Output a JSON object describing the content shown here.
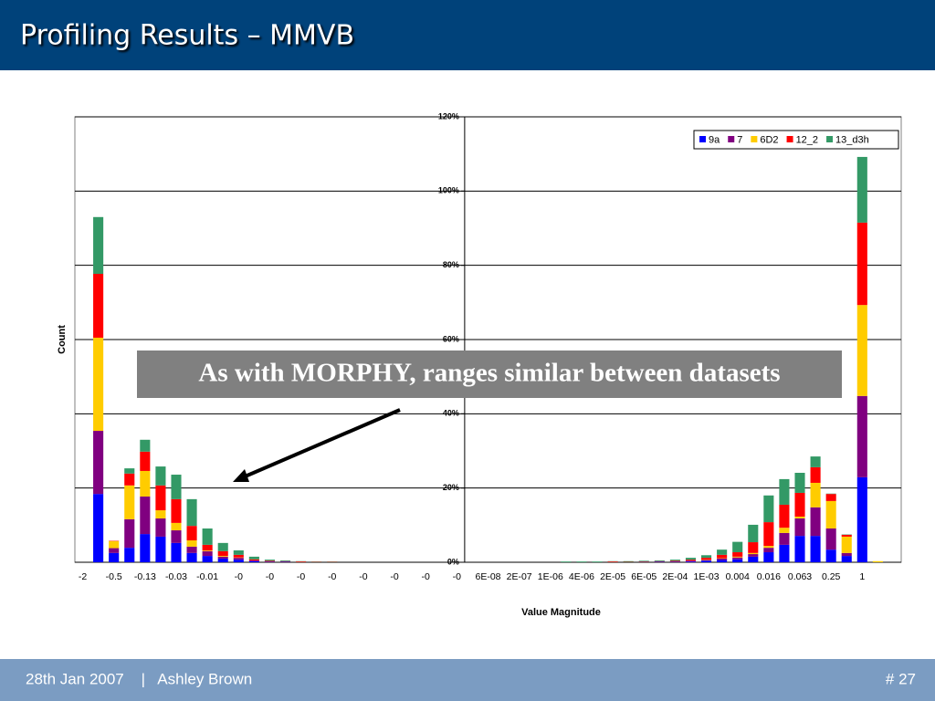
{
  "header": {
    "title": "Profiling Results – MMVB"
  },
  "chart_data": {
    "type": "stacked_bar",
    "y_label": "Count",
    "x_label": "Value Magnitude",
    "annotation": "As with MORPHY, ranges similar between datasets",
    "legend": "top-right",
    "grid": true,
    "ylim": [
      0,
      120
    ],
    "yticks": [
      {
        "value": 0,
        "label": "0%"
      },
      {
        "value": 20,
        "label": "20%"
      },
      {
        "value": 40,
        "label": "40%"
      },
      {
        "value": 60,
        "label": "60%"
      },
      {
        "value": 80,
        "label": "80%"
      },
      {
        "value": 100,
        "label": "100%"
      },
      {
        "value": 120,
        "label": "120%"
      }
    ],
    "categories": [
      "-2",
      null,
      "-0.5",
      null,
      "-0.13",
      null,
      "-0.03",
      null,
      "-0.01",
      null,
      "-0",
      null,
      "-0",
      null,
      "-0",
      null,
      "-0",
      null,
      "-0",
      null,
      "-0",
      null,
      "-0",
      null,
      "-0",
      null,
      "6E-08",
      null,
      "2E-07",
      null,
      "1E-06",
      null,
      "4E-06",
      null,
      "2E-05",
      null,
      "6E-05",
      null,
      "2E-04",
      null,
      "1E-03",
      null,
      "0.004",
      null,
      "0.016",
      null,
      "0.063",
      null,
      "0.25",
      null,
      "1",
      null,
      null
    ],
    "series": [
      {
        "name": "9a",
        "color": "#0000ff",
        "values": [
          0,
          18.4,
          2.5,
          3.9,
          7.6,
          6.9,
          5.2,
          2.5,
          1.7,
          1,
          0.7,
          0.3,
          0.1,
          0.1,
          0,
          0,
          0,
          0,
          0,
          0,
          0,
          0,
          0,
          0,
          0,
          0,
          0,
          0,
          0,
          0,
          0,
          0,
          0,
          0,
          0,
          0,
          0,
          0.1,
          0.1,
          0.2,
          0.4,
          0.6,
          0.8,
          1.5,
          2.7,
          4.7,
          7.1,
          7.1,
          3.4,
          1.7,
          22.9,
          0,
          0
        ]
      },
      {
        "name": "7",
        "color": "#800080",
        "values": [
          0,
          17,
          1.3,
          7.7,
          10.1,
          4.9,
          3.4,
          1.7,
          1.3,
          0.5,
          0.5,
          0.2,
          0.1,
          0.1,
          0,
          0,
          0,
          0,
          0,
          0,
          0,
          0,
          0,
          0,
          0,
          0,
          0,
          0,
          0,
          0,
          0,
          0,
          0,
          0,
          0,
          0,
          0.1,
          0.1,
          0.1,
          0.2,
          0.2,
          0.4,
          0.5,
          0.7,
          1.2,
          3.2,
          4.7,
          7.7,
          5.7,
          0.8,
          21.9,
          0,
          0
        ]
      },
      {
        "name": "6D2",
        "color": "#ffcc00",
        "values": [
          0,
          25.1,
          1.9,
          9.1,
          6.9,
          2.2,
          2,
          1.7,
          0.2,
          0.2,
          0.1,
          0,
          0,
          0,
          0,
          0,
          0,
          0,
          0,
          0,
          0,
          0,
          0,
          0,
          0,
          0,
          0,
          0,
          0,
          0,
          0,
          0,
          0,
          0,
          0,
          0,
          0,
          0,
          0,
          0,
          0.1,
          0.1,
          0.2,
          0.3,
          0.5,
          1.4,
          0.5,
          6.6,
          7.4,
          4.4,
          24.5,
          0.3,
          0
        ]
      },
      {
        "name": "12_2",
        "color": "#ff0000",
        "values": [
          0,
          17.2,
          0.1,
          3.2,
          5.2,
          6.7,
          6.4,
          3.9,
          1.5,
          1.3,
          0.7,
          0.3,
          0.2,
          0.1,
          0.2,
          0.1,
          0.1,
          0,
          0,
          0,
          0,
          0,
          0,
          0,
          0,
          0,
          0,
          0,
          0,
          0,
          0,
          0,
          0,
          0,
          0.2,
          0.1,
          0.1,
          0.1,
          0.2,
          0.3,
          0.5,
          0.9,
          1.2,
          2.9,
          6.4,
          6.2,
          6.4,
          4.2,
          1.9,
          0.5,
          22.2,
          0,
          0
        ]
      },
      {
        "name": "13_d3h",
        "color": "#339966",
        "values": [
          0,
          15.3,
          0,
          1.4,
          3.2,
          5.1,
          6.6,
          7.2,
          4.4,
          2.2,
          1.2,
          0.7,
          0.3,
          0.2,
          0.1,
          0.1,
          0.1,
          0,
          0,
          0,
          0,
          0,
          0,
          0,
          0,
          0,
          0,
          0,
          0,
          0,
          0,
          0.2,
          0.2,
          0.2,
          0.1,
          0.2,
          0.2,
          0.2,
          0.3,
          0.5,
          0.7,
          1.4,
          2.8,
          4.7,
          7.2,
          6.9,
          5.4,
          2.9,
          0.1,
          0.1,
          17.7,
          0,
          0
        ]
      }
    ]
  },
  "footer": {
    "left": "28th Jan 2007    |   Ashley Brown",
    "right": "# 27"
  }
}
